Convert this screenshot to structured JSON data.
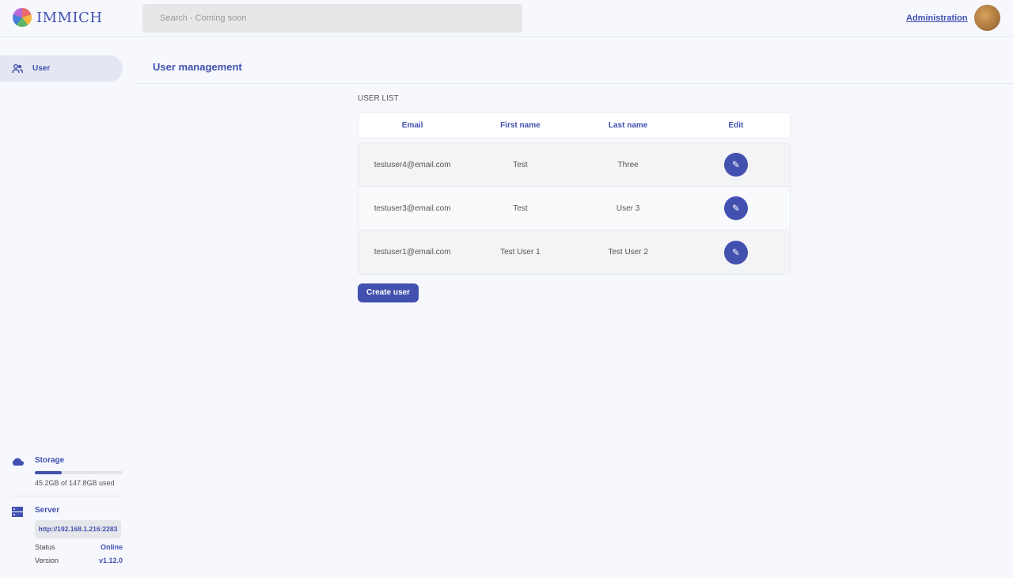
{
  "header": {
    "app_name": "IMMICH",
    "search_placeholder": "Search - Coming soon",
    "admin_link": "Administration"
  },
  "sidebar": {
    "items": [
      {
        "label": "User",
        "icon": "users-icon"
      }
    ],
    "storage": {
      "title": "Storage",
      "used_text": "45.2GB of 147.8GB used",
      "used_fraction": 0.306
    },
    "server": {
      "title": "Server",
      "url": "http://192.168.1.216:2283",
      "status_label": "Status",
      "status_value": "Online",
      "version_label": "Version",
      "version_value": "v1.12.0"
    }
  },
  "main": {
    "title": "User management",
    "list_label": "USER LIST",
    "columns": [
      "Email",
      "First name",
      "Last name",
      "Edit"
    ],
    "rows": [
      {
        "email": "testuser4@email.com",
        "first": "Test",
        "last": "Three"
      },
      {
        "email": "testuser3@email.com",
        "first": "Test",
        "last": "User 3"
      },
      {
        "email": "testuser1@email.com",
        "first": "Test User 1",
        "last": "Test User 2"
      }
    ],
    "create_button": "Create user"
  },
  "colors": {
    "accent": "#4250af",
    "background": "#f6f8fe"
  }
}
